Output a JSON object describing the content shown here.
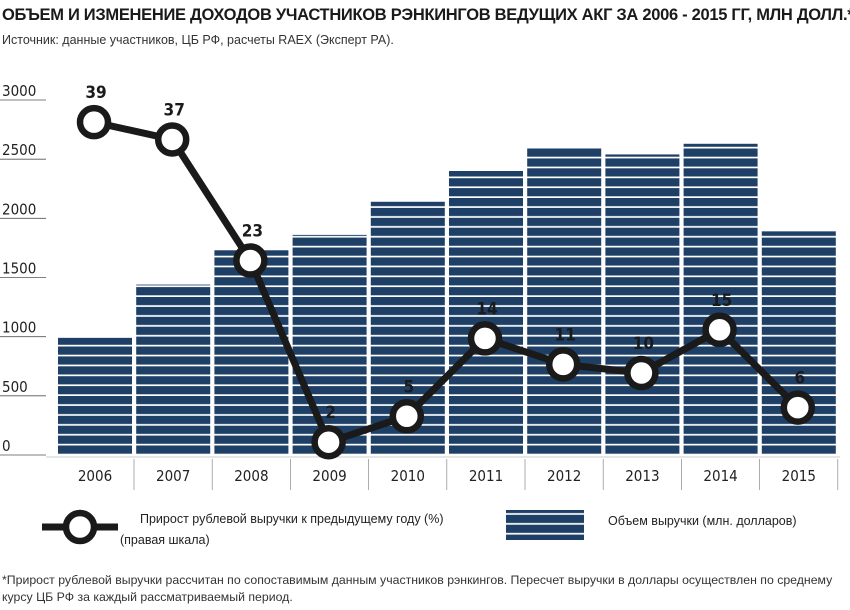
{
  "title": "ОБЪЕМ И ИЗМЕНЕНИЕ ДОХОДОВ УЧАСТНИКОВ РЭНКИНГОВ ВЕДУЩИХ АКГ ЗА 2006 - 2015 ГГ, МЛН ДОЛЛ.*",
  "subtitle": "Источник: данные участников, ЦБ РФ, расчеты RAEX (Эксперт РА).",
  "legend": {
    "line_label_1": "Прирост рублевой выручки к предыдущему году (%)",
    "line_label_2": "(правая шкала)",
    "bar_label": "Объем выручки (млн. долларов)"
  },
  "footnote": "*Прирост рублевой выручки рассчитан по сопоставимым данным участников рэнкингов. Пересчет выручки в доллары осуществлен по среднему курсу ЦБ РФ за каждый рассматриваемый период.",
  "colors": {
    "bar": "#1e3f66",
    "bar_stripe": "#ffffff",
    "line": "#1a1a1a",
    "axis_text": "#222222"
  },
  "chart_data": {
    "type": "bar",
    "categories": [
      "2006",
      "2007",
      "2008",
      "2009",
      "2010",
      "2011",
      "2012",
      "2013",
      "2014",
      "2015"
    ],
    "series": [
      {
        "name": "Объем выручки (млн. долларов)",
        "type": "bar",
        "axis": "left",
        "values": [
          990,
          1440,
          1730,
          1860,
          2140,
          2400,
          2600,
          2540,
          2630,
          1890
        ]
      },
      {
        "name": "Прирост рублевой выручки к предыдущему году (%)",
        "type": "line",
        "axis": "right",
        "values": [
          39,
          37,
          23,
          2,
          5,
          14,
          11,
          10,
          15,
          6
        ]
      }
    ],
    "y_left": {
      "ticks": [
        0,
        500,
        1000,
        1500,
        2000,
        2500,
        3000
      ],
      "range": [
        0,
        3000
      ]
    },
    "grid": false,
    "legend_position": "bottom"
  }
}
